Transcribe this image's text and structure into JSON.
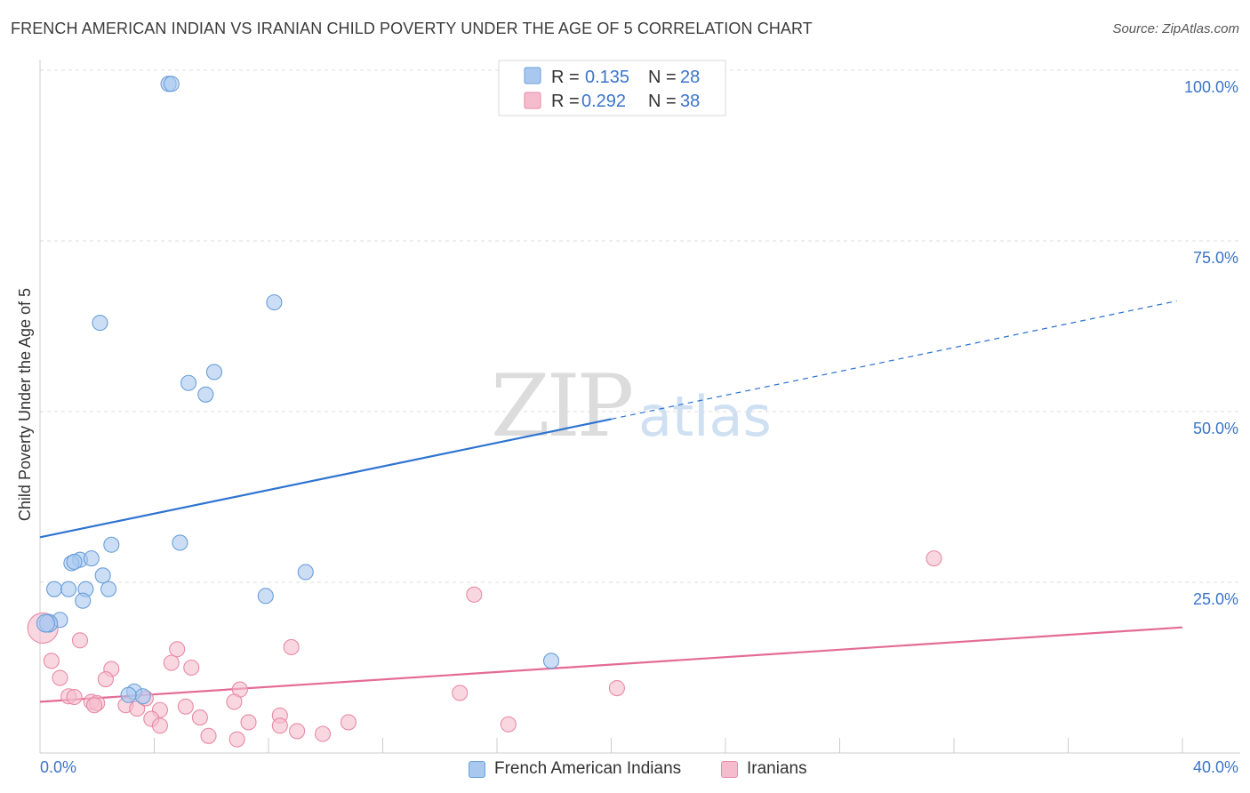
{
  "title": "FRENCH AMERICAN INDIAN VS IRANIAN CHILD POVERTY UNDER THE AGE OF 5 CORRELATION CHART",
  "source": "Source: ZipAtlas.com",
  "watermark": {
    "zip": "ZIP",
    "atlas": "atlas"
  },
  "colors": {
    "blue_fill": "#a9c8f0",
    "blue_stroke": "#6a9fd8",
    "blue_line": "#2f74d0",
    "pink_fill": "#f5bccd",
    "pink_stroke": "#e88aa7",
    "pink_line": "#e46b95",
    "tick_text": "#3a74c9",
    "grid": "#dcdcdc"
  },
  "legend": {
    "r_label": "R =",
    "n_label": "N =",
    "rows": [
      {
        "r": "0.135",
        "n": "28"
      },
      {
        "r": "0.292",
        "n": "38"
      }
    ]
  },
  "bottom_legend": [
    "French American Indians",
    "Iranians"
  ],
  "chart_data": {
    "type": "scatter",
    "xlabel": "",
    "ylabel": "Child Poverty Under the Age of 5",
    "xlim": [
      0,
      40
    ],
    "ylim": [
      0,
      100
    ],
    "x_tick_labels": [
      "0.0%",
      "40.0%"
    ],
    "y_tick_labels": [
      "25.0%",
      "50.0%",
      "75.0%",
      "100.0%"
    ],
    "y_ticks": [
      25,
      50,
      75,
      100
    ],
    "grid": "horizontal dashed",
    "legend_position": "top-center",
    "series": [
      {
        "name": "French American Indians",
        "r": 0.135,
        "n": 28,
        "trend": {
          "x0": 0,
          "y0": 31.6,
          "x1": 20,
          "y1": 48.9,
          "x_end": 40,
          "y_end": 66.4
        },
        "points": [
          [
            4.5,
            98.0
          ],
          [
            4.6,
            98.0
          ],
          [
            8.2,
            66.0
          ],
          [
            2.1,
            63.0
          ],
          [
            6.1,
            55.8
          ],
          [
            5.2,
            54.2
          ],
          [
            5.8,
            52.5
          ],
          [
            2.5,
            30.5
          ],
          [
            4.9,
            30.8
          ],
          [
            1.4,
            28.3
          ],
          [
            1.8,
            28.5
          ],
          [
            1.1,
            27.8
          ],
          [
            1.2,
            28.0
          ],
          [
            2.2,
            26.0
          ],
          [
            9.3,
            26.5
          ],
          [
            0.5,
            24.0
          ],
          [
            1.0,
            24.0
          ],
          [
            1.6,
            24.0
          ],
          [
            2.4,
            24.0
          ],
          [
            1.5,
            22.3
          ],
          [
            7.9,
            23.0
          ],
          [
            0.7,
            19.5
          ],
          [
            0.3,
            19.0
          ],
          [
            0.2,
            19.0
          ],
          [
            17.9,
            13.5
          ],
          [
            3.3,
            9.0
          ],
          [
            3.6,
            8.3
          ],
          [
            3.1,
            8.5
          ]
        ]
      },
      {
        "name": "Iranians",
        "r": 0.292,
        "n": 38,
        "trend": {
          "x0": 0,
          "y0": 7.5,
          "x1": 40,
          "y1": 18.4
        },
        "points": [
          [
            0.1,
            18.3
          ],
          [
            1.4,
            16.5
          ],
          [
            0.4,
            13.5
          ],
          [
            4.8,
            15.2
          ],
          [
            8.8,
            15.5
          ],
          [
            2.5,
            12.3
          ],
          [
            4.6,
            13.2
          ],
          [
            5.3,
            12.5
          ],
          [
            15.2,
            23.2
          ],
          [
            31.3,
            28.5
          ],
          [
            0.7,
            11.0
          ],
          [
            2.3,
            10.8
          ],
          [
            7.0,
            9.3
          ],
          [
            14.7,
            8.8
          ],
          [
            20.2,
            9.5
          ],
          [
            1.0,
            8.3
          ],
          [
            1.2,
            8.2
          ],
          [
            1.8,
            7.5
          ],
          [
            2.0,
            7.3
          ],
          [
            3.0,
            7.0
          ],
          [
            3.4,
            6.5
          ],
          [
            4.2,
            6.3
          ],
          [
            5.1,
            6.8
          ],
          [
            6.8,
            7.5
          ],
          [
            3.9,
            5.0
          ],
          [
            5.6,
            5.2
          ],
          [
            8.4,
            5.5
          ],
          [
            4.2,
            4.0
          ],
          [
            7.3,
            4.5
          ],
          [
            8.4,
            4.0
          ],
          [
            10.8,
            4.5
          ],
          [
            16.4,
            4.2
          ],
          [
            9.0,
            3.2
          ],
          [
            9.9,
            2.8
          ],
          [
            5.9,
            2.5
          ],
          [
            6.9,
            2.0
          ],
          [
            1.9,
            7.0
          ],
          [
            3.7,
            8.0
          ]
        ]
      }
    ]
  }
}
